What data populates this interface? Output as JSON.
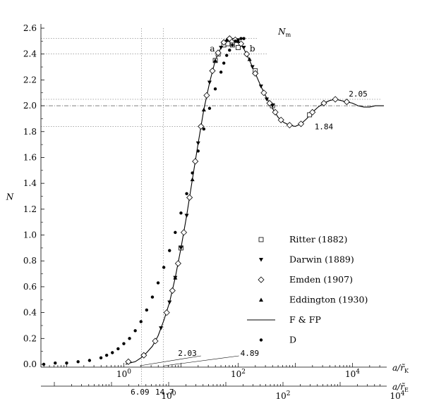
{
  "chart_data": {
    "type": "line",
    "title": "",
    "ylabel": "N",
    "ylim": [
      0,
      2.6
    ],
    "yticks": [
      "0.0",
      "0.2",
      "0.4",
      "0.6",
      "0.8",
      "1.0",
      "1.2",
      "1.4",
      "1.6",
      "1.8",
      "2.0",
      "2.2",
      "2.4",
      "2.6"
    ],
    "x_axis_top": {
      "label": "a/r̃_K",
      "label_main": "a/r̃",
      "label_sub": "K",
      "tick_labels": [
        {
          "base": "10",
          "exp": "0",
          "value": 1
        },
        {
          "base": "10",
          "exp": "2",
          "value": 100
        },
        {
          "base": "10",
          "exp": "4",
          "value": 10000
        }
      ]
    },
    "x_axis_bottom": {
      "label": "a/r̃_E",
      "label_main": "a/r̃",
      "label_sub": "E",
      "tick_labels": [
        {
          "base": "10",
          "exp": "0",
          "value": 1
        },
        {
          "base": "10",
          "exp": "2",
          "value": 100
        },
        {
          "base": "10",
          "exp": "4",
          "value": 10000
        }
      ],
      "scale_ratio": 6.09,
      "extra_labels": [
        "6.09",
        "14.7"
      ]
    },
    "xlim_top_log10": [
      -1.45,
      4.55
    ],
    "annotations": {
      "nm": {
        "main": "N",
        "sub": "m",
        "value": 2.52
      },
      "a": "a",
      "b": "b",
      "val_205": "2.05",
      "val_184": "1.84",
      "val_203": "2.03",
      "val_489": "4.89",
      "asymptote": 2.0
    },
    "reference_lines": {
      "vertical_a": 2.03,
      "vertical_b": 4.89,
      "horizontal": [
        2.52,
        2.4,
        2.05,
        1.84
      ]
    },
    "series": [
      {
        "name": "F & FP",
        "kind": "line",
        "points": [
          [
            0.03,
            0.0
          ],
          [
            0.1,
            0.01
          ],
          [
            0.2,
            0.02
          ],
          [
            0.3,
            0.05
          ],
          [
            0.4,
            0.09
          ],
          [
            0.5,
            0.14
          ],
          [
            0.6,
            0.22
          ],
          [
            0.7,
            0.34
          ],
          [
            0.8,
            0.48
          ],
          [
            0.9,
            0.67
          ],
          [
            1.0,
            0.9
          ],
          [
            1.1,
            1.15
          ],
          [
            1.2,
            1.43
          ],
          [
            1.3,
            1.71
          ],
          [
            1.4,
            1.97
          ],
          [
            1.5,
            2.18
          ],
          [
            1.6,
            2.35
          ],
          [
            1.7,
            2.45
          ],
          [
            1.8,
            2.51
          ],
          [
            1.9,
            2.52
          ],
          [
            2.0,
            2.5
          ],
          [
            2.1,
            2.44
          ],
          [
            2.2,
            2.35
          ],
          [
            2.3,
            2.25
          ],
          [
            2.4,
            2.15
          ],
          [
            2.5,
            2.06
          ],
          [
            2.6,
            1.98
          ],
          [
            2.7,
            1.91
          ],
          [
            2.8,
            1.87
          ],
          [
            2.9,
            1.85
          ],
          [
            3.0,
            1.84
          ],
          [
            3.1,
            1.86
          ],
          [
            3.2,
            1.9
          ],
          [
            3.3,
            1.95
          ],
          [
            3.4,
            1.99
          ],
          [
            3.5,
            2.02
          ],
          [
            3.6,
            2.04
          ],
          [
            3.7,
            2.05
          ],
          [
            3.8,
            2.04
          ],
          [
            3.9,
            2.03
          ],
          [
            4.0,
            2.02
          ],
          [
            4.1,
            2.0
          ],
          [
            4.2,
            1.99
          ],
          [
            4.3,
            1.99
          ],
          [
            4.4,
            2.0
          ],
          [
            4.55,
            2.0
          ]
        ]
      },
      {
        "name": "Ritter  (1882)",
        "kind": "square",
        "points": [
          [
            1.0,
            0.9
          ],
          [
            1.6,
            2.35
          ],
          [
            1.65,
            2.4
          ],
          [
            1.75,
            2.47
          ],
          [
            1.82,
            2.48
          ],
          [
            1.9,
            2.47
          ],
          [
            2.0,
            2.45
          ],
          [
            2.3,
            2.27
          ],
          [
            2.6,
            2.0
          ],
          [
            3.25,
            1.93
          ]
        ]
      },
      {
        "name": "Darwin  (1889)",
        "kind": "down-triangle",
        "points": [
          [
            0.65,
            0.28
          ],
          [
            0.8,
            0.48
          ],
          [
            0.9,
            0.67
          ],
          [
            1.0,
            0.9
          ],
          [
            1.1,
            1.15
          ],
          [
            1.3,
            1.71
          ],
          [
            1.5,
            2.18
          ],
          [
            1.7,
            2.45
          ],
          [
            1.85,
            2.51
          ],
          [
            1.95,
            2.51
          ],
          [
            2.1,
            2.45
          ],
          [
            2.25,
            2.3
          ],
          [
            2.4,
            2.15
          ],
          [
            2.5,
            2.05
          ],
          [
            2.6,
            2.0
          ]
        ]
      },
      {
        "name": "Emden  (1907)",
        "kind": "diamond",
        "points": [
          [
            0.08,
            0.02
          ],
          [
            0.35,
            0.07
          ],
          [
            0.55,
            0.18
          ],
          [
            0.75,
            0.4
          ],
          [
            0.85,
            0.57
          ],
          [
            0.95,
            0.78
          ],
          [
            1.05,
            1.02
          ],
          [
            1.15,
            1.29
          ],
          [
            1.25,
            1.57
          ],
          [
            1.35,
            1.84
          ],
          [
            1.45,
            2.08
          ],
          [
            1.55,
            2.27
          ],
          [
            1.65,
            2.41
          ],
          [
            1.75,
            2.49
          ],
          [
            1.85,
            2.52
          ],
          [
            1.95,
            2.51
          ],
          [
            2.05,
            2.48
          ],
          [
            2.15,
            2.4
          ],
          [
            2.3,
            2.25
          ],
          [
            2.45,
            2.1
          ],
          [
            2.55,
            2.02
          ],
          [
            2.65,
            1.95
          ],
          [
            2.75,
            1.89
          ],
          [
            2.9,
            1.85
          ],
          [
            3.1,
            1.86
          ],
          [
            3.3,
            1.95
          ],
          [
            3.5,
            2.02
          ],
          [
            3.7,
            2.05
          ],
          [
            3.9,
            2.03
          ]
        ]
      },
      {
        "name": "Eddington  (1930)",
        "kind": "up-triangle",
        "points": [
          [
            0.9,
            0.67
          ],
          [
            1.2,
            1.43
          ],
          [
            1.4,
            1.97
          ],
          [
            1.6,
            2.35
          ],
          [
            1.8,
            2.51
          ],
          [
            2.0,
            2.5
          ],
          [
            2.2,
            2.36
          ]
        ]
      },
      {
        "name": "D",
        "kind": "dot",
        "points": [
          [
            -1.4,
            0.0
          ],
          [
            -1.2,
            0.01
          ],
          [
            -1.0,
            0.01
          ],
          [
            -0.8,
            0.02
          ],
          [
            -0.6,
            0.03
          ],
          [
            -0.4,
            0.05
          ],
          [
            -0.3,
            0.07
          ],
          [
            -0.2,
            0.09
          ],
          [
            -0.1,
            0.12
          ],
          [
            0.0,
            0.16
          ],
          [
            0.1,
            0.2
          ],
          [
            0.2,
            0.26
          ],
          [
            0.3,
            0.33
          ],
          [
            0.4,
            0.42
          ],
          [
            0.5,
            0.52
          ],
          [
            0.6,
            0.63
          ],
          [
            0.7,
            0.75
          ],
          [
            0.8,
            0.88
          ],
          [
            0.9,
            1.02
          ],
          [
            1.0,
            1.17
          ],
          [
            1.1,
            1.32
          ],
          [
            1.2,
            1.48
          ],
          [
            1.3,
            1.65
          ],
          [
            1.4,
            1.82
          ],
          [
            1.5,
            1.98
          ],
          [
            1.6,
            2.13
          ],
          [
            1.7,
            2.26
          ],
          [
            1.75,
            2.33
          ],
          [
            1.8,
            2.39
          ],
          [
            1.85,
            2.43
          ],
          [
            1.9,
            2.47
          ],
          [
            1.95,
            2.5
          ],
          [
            2.0,
            2.51
          ],
          [
            2.05,
            2.52
          ],
          [
            2.1,
            2.52
          ]
        ]
      }
    ],
    "legend": {
      "position": "lower-right",
      "entries": [
        {
          "kind": "square",
          "label": "Ritter  (1882)"
        },
        {
          "kind": "down-triangle",
          "label": "Darwin  (1889)"
        },
        {
          "kind": "diamond",
          "label": "Emden  (1907)"
        },
        {
          "kind": "up-triangle",
          "label": "Eddington  (1930)"
        },
        {
          "kind": "line",
          "label": "F & FP"
        },
        {
          "kind": "dot",
          "label": "D"
        }
      ]
    },
    "grid": false
  }
}
